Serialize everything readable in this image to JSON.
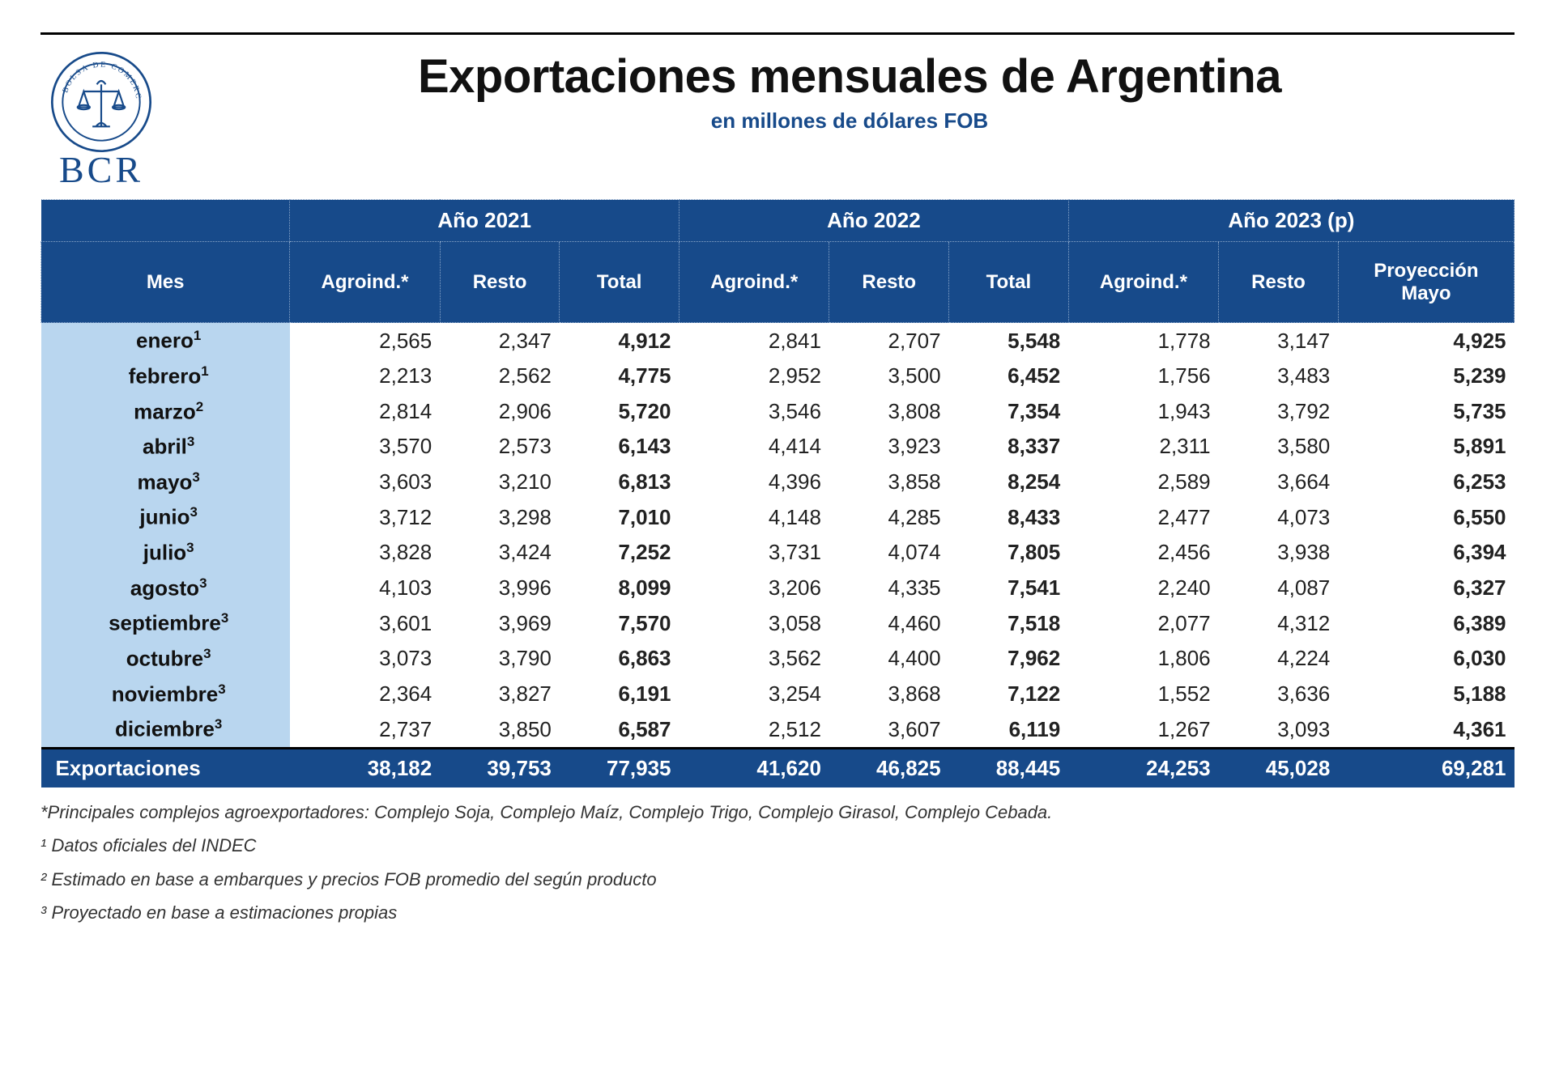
{
  "title": "Exportaciones mensuales de Argentina",
  "subtitle": "en millones de dólares FOB",
  "org_label": "BCR",
  "colors": {
    "header_bg": "#174a8a",
    "header_text": "#ffffff",
    "month_bg": "#b9d6ef",
    "rule": "#000000",
    "subtitle": "#174a8a"
  },
  "typography": {
    "title_fontsize_pt": 44,
    "subtitle_fontsize_pt": 20,
    "body_fontsize_pt": 19,
    "header_fontsize_pt": 20
  },
  "years": {
    "y2021": "Año 2021",
    "y2022": "Año 2022",
    "y2023": "Año 2023 (p)"
  },
  "columns": {
    "mes": "Mes",
    "agroind": "Agroind.*",
    "resto": "Resto",
    "total": "Total",
    "proy_mayo_l1": "Proyección",
    "proy_mayo_l2": "Mayo"
  },
  "rows": [
    {
      "mes": "enero",
      "sup": "1",
      "a21": "2,565",
      "r21": "2,347",
      "t21": "4,912",
      "a22": "2,841",
      "r22": "2,707",
      "t22": "5,548",
      "a23": "1,778",
      "r23": "3,147",
      "p23": "4,925"
    },
    {
      "mes": "febrero",
      "sup": "1",
      "a21": "2,213",
      "r21": "2,562",
      "t21": "4,775",
      "a22": "2,952",
      "r22": "3,500",
      "t22": "6,452",
      "a23": "1,756",
      "r23": "3,483",
      "p23": "5,239"
    },
    {
      "mes": "marzo",
      "sup": "2",
      "a21": "2,814",
      "r21": "2,906",
      "t21": "5,720",
      "a22": "3,546",
      "r22": "3,808",
      "t22": "7,354",
      "a23": "1,943",
      "r23": "3,792",
      "p23": "5,735"
    },
    {
      "mes": "abril",
      "sup": "3",
      "a21": "3,570",
      "r21": "2,573",
      "t21": "6,143",
      "a22": "4,414",
      "r22": "3,923",
      "t22": "8,337",
      "a23": "2,311",
      "r23": "3,580",
      "p23": "5,891"
    },
    {
      "mes": "mayo",
      "sup": "3",
      "a21": "3,603",
      "r21": "3,210",
      "t21": "6,813",
      "a22": "4,396",
      "r22": "3,858",
      "t22": "8,254",
      "a23": "2,589",
      "r23": "3,664",
      "p23": "6,253"
    },
    {
      "mes": "junio",
      "sup": "3",
      "a21": "3,712",
      "r21": "3,298",
      "t21": "7,010",
      "a22": "4,148",
      "r22": "4,285",
      "t22": "8,433",
      "a23": "2,477",
      "r23": "4,073",
      "p23": "6,550"
    },
    {
      "mes": "julio",
      "sup": "3",
      "a21": "3,828",
      "r21": "3,424",
      "t21": "7,252",
      "a22": "3,731",
      "r22": "4,074",
      "t22": "7,805",
      "a23": "2,456",
      "r23": "3,938",
      "p23": "6,394"
    },
    {
      "mes": "agosto",
      "sup": "3",
      "a21": "4,103",
      "r21": "3,996",
      "t21": "8,099",
      "a22": "3,206",
      "r22": "4,335",
      "t22": "7,541",
      "a23": "2,240",
      "r23": "4,087",
      "p23": "6,327"
    },
    {
      "mes": "septiembre",
      "sup": "3",
      "a21": "3,601",
      "r21": "3,969",
      "t21": "7,570",
      "a22": "3,058",
      "r22": "4,460",
      "t22": "7,518",
      "a23": "2,077",
      "r23": "4,312",
      "p23": "6,389"
    },
    {
      "mes": "octubre",
      "sup": "3",
      "a21": "3,073",
      "r21": "3,790",
      "t21": "6,863",
      "a22": "3,562",
      "r22": "4,400",
      "t22": "7,962",
      "a23": "1,806",
      "r23": "4,224",
      "p23": "6,030"
    },
    {
      "mes": "noviembre",
      "sup": "3",
      "a21": "2,364",
      "r21": "3,827",
      "t21": "6,191",
      "a22": "3,254",
      "r22": "3,868",
      "t22": "7,122",
      "a23": "1,552",
      "r23": "3,636",
      "p23": "5,188"
    },
    {
      "mes": "diciembre",
      "sup": "3",
      "a21": "2,737",
      "r21": "3,850",
      "t21": "6,587",
      "a22": "2,512",
      "r22": "3,607",
      "t22": "6,119",
      "a23": "1,267",
      "r23": "3,093",
      "p23": "4,361"
    }
  ],
  "totals": {
    "label": "Exportaciones",
    "a21": "38,182",
    "r21": "39,753",
    "t21": "77,935",
    "a22": "41,620",
    "r22": "46,825",
    "t22": "88,445",
    "a23": "24,253",
    "r23": "45,028",
    "p23": "69,281"
  },
  "footnotes": {
    "star": "*Principales complejos agroexportadores: Complejo Soja, Complejo Maíz, Complejo Trigo, Complejo Girasol, Complejo Cebada.",
    "n1": "¹ Datos oficiales del INDEC",
    "n2": "² Estimado en base a embarques y precios FOB promedio del según producto",
    "n3": "³ Proyectado en base a estimaciones propias"
  }
}
